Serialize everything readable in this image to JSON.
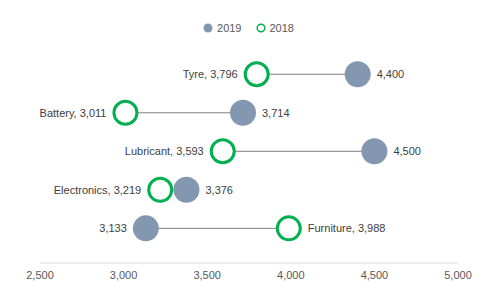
{
  "chart_data": {
    "type": "dumbbell",
    "orientation": "horizontal",
    "categories": [
      "Tyre",
      "Battery",
      "Lubricant",
      "Electronics",
      "Furniture"
    ],
    "series": [
      {
        "name": "2019",
        "color": "#8497b0",
        "marker": "filled",
        "values": [
          4400,
          3714,
          4500,
          3376,
          3133
        ],
        "value_labels": [
          "4,400",
          "3,714",
          "4,500",
          "3,376",
          "3,133"
        ]
      },
      {
        "name": "2018",
        "color": "#00b050",
        "marker": "hollow",
        "values": [
          3796,
          3011,
          3593,
          3219,
          3988
        ],
        "value_labels": [
          "Tyre, 3,796",
          "Battery, 3,011",
          "Lubricant, 3,593",
          "Electronics, 3,219",
          "Furniture, 3,988"
        ]
      }
    ],
    "xlim": [
      2500,
      5000
    ],
    "xticks": [
      {
        "value": 2500,
        "label": "2,500"
      },
      {
        "value": 3000,
        "label": "3,000"
      },
      {
        "value": 3500,
        "label": "3,500"
      },
      {
        "value": 4000,
        "label": "4,000"
      },
      {
        "value": 4500,
        "label": "4,500"
      },
      {
        "value": 5000,
        "label": "5,000"
      }
    ],
    "data_labels": true,
    "tick_labels": "x",
    "legend": "top",
    "grid": false
  }
}
